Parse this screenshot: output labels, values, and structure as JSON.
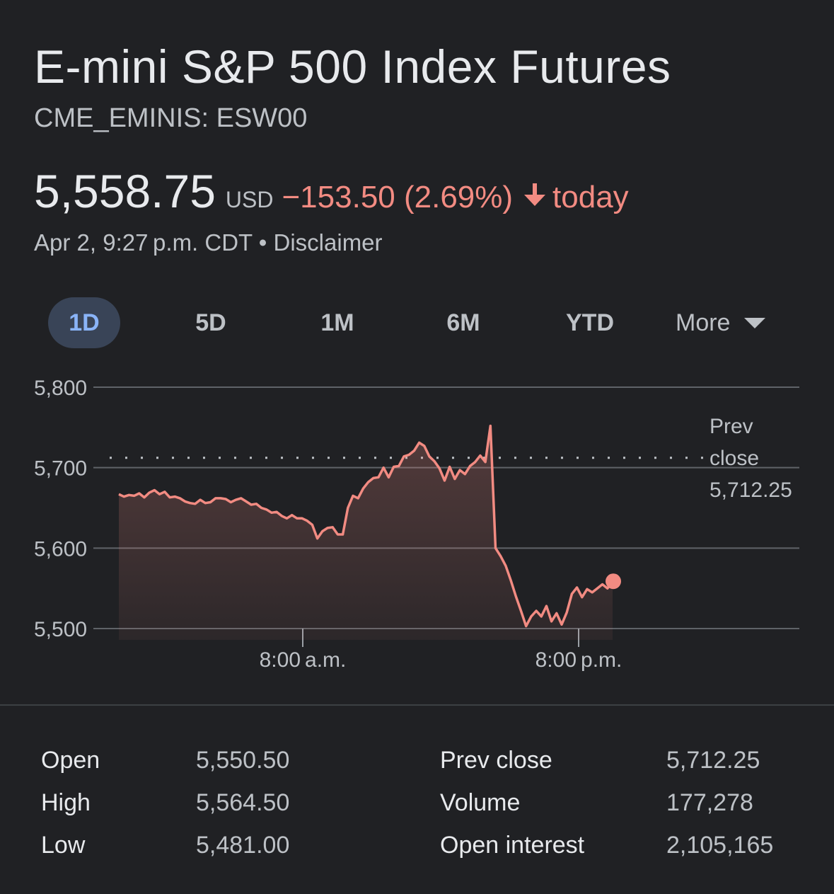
{
  "header": {
    "title": "E-mini S&P 500 Index Futures",
    "ticker": "CME_EMINIS: ESW00"
  },
  "quote": {
    "price": "5,558.75",
    "currency": "USD",
    "change": "−153.50 (2.69%)",
    "period": "today",
    "direction_icon": "arrow-down-icon",
    "change_color": "#f28b82"
  },
  "meta": {
    "timestamp": "Apr 2, 9:27 p.m. CDT",
    "separator": " • ",
    "disclaimer": "Disclaimer"
  },
  "ranges": {
    "items": [
      {
        "label": "1D",
        "active": true
      },
      {
        "label": "5D",
        "active": false
      },
      {
        "label": "1M",
        "active": false
      },
      {
        "label": "6M",
        "active": false
      },
      {
        "label": "YTD",
        "active": false
      }
    ],
    "more_label": "More",
    "more_icon": "caret-down-icon"
  },
  "chart_data": {
    "type": "area",
    "color": "#f28b82",
    "y_ticks": [
      "5,800",
      "5,700",
      "5,600",
      "5,500"
    ],
    "y_tick_values": [
      5800,
      5700,
      5600,
      5500
    ],
    "ylim": [
      5500,
      5800
    ],
    "x_ticks": [
      "8:00 a.m.",
      "8:00 p.m."
    ],
    "grid": true,
    "prev_close_label": [
      "Prev",
      "close",
      "5,712.25"
    ],
    "prev_close": 5712.25,
    "series": [
      {
        "values": [
          5667,
          5664,
          5666,
          5665,
          5668,
          5663,
          5669,
          5672,
          5667,
          5670,
          5663,
          5664,
          5662,
          5658,
          5656,
          5655,
          5660,
          5656,
          5657,
          5662,
          5662,
          5661,
          5657,
          5660,
          5662,
          5658,
          5654,
          5655,
          5650,
          5648,
          5644,
          5645,
          5640,
          5637,
          5641,
          5637,
          5637,
          5634,
          5629,
          5612,
          5621,
          5625,
          5626,
          5617,
          5617,
          5650,
          5665,
          5662,
          5674,
          5682,
          5687,
          5688,
          5700,
          5688,
          5701,
          5702,
          5714,
          5716,
          5721,
          5731,
          5727,
          5714,
          5708,
          5699,
          5684,
          5701,
          5686,
          5697,
          5692,
          5702,
          5707,
          5715,
          5707,
          5752,
          5600,
          5590,
          5578,
          5560,
          5540,
          5522,
          5503,
          5515,
          5522,
          5515,
          5528,
          5509,
          5519,
          5505,
          5520,
          5543,
          5551,
          5539,
          5549,
          5545,
          5550,
          5555,
          5550,
          5559
        ]
      }
    ],
    "current_value": 5558.75
  },
  "stats": {
    "left": [
      {
        "label": "Open",
        "value": "5,550.50"
      },
      {
        "label": "High",
        "value": "5,564.50"
      },
      {
        "label": "Low",
        "value": "5,481.00"
      }
    ],
    "right": [
      {
        "label": "Prev close",
        "value": "5,712.25"
      },
      {
        "label": "Volume",
        "value": "177,278"
      },
      {
        "label": "Open interest",
        "value": "2,105,165"
      }
    ]
  }
}
